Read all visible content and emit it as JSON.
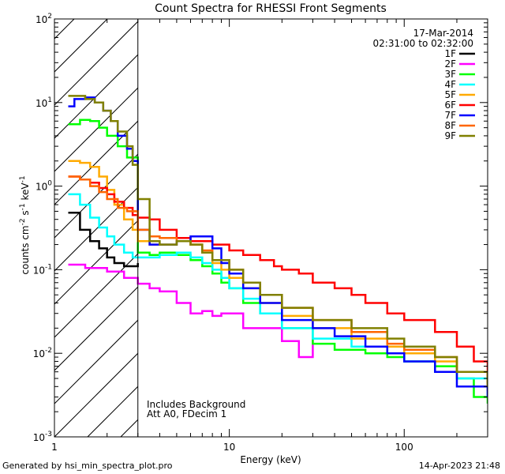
{
  "chart_data": {
    "type": "line",
    "title": "Count Spectra for RHESSI Front Segments",
    "xlabel": "Energy (keV)",
    "ylabel": "counts cm-2 s-1 keV-1",
    "xscale": "log",
    "yscale": "log",
    "xlim": [
      1,
      300
    ],
    "ylim": [
      0.001,
      100
    ],
    "x_ticks": [
      1,
      10,
      100
    ],
    "x_tick_labels": [
      "1",
      "10",
      "100"
    ],
    "y_ticks": [
      0.001,
      0.01,
      0.1,
      1,
      10,
      100
    ],
    "y_tick_labels": [
      "10^-3",
      "10^-2",
      "10^-1",
      "10^0",
      "10^1",
      "10^2"
    ],
    "date": "17-Mar-2014",
    "time_range": "02:31:00 to 02:32:00",
    "annotation_lines": [
      "Includes Background",
      "Att A0, FDecim 1"
    ],
    "hatched_region": [
      1,
      3
    ],
    "series": [
      {
        "name": "1F",
        "color": "#000000",
        "x": [
          1.2,
          1.4,
          1.6,
          1.8,
          2.0,
          2.2,
          2.5,
          2.8,
          3.0
        ],
        "y": [
          0.48,
          0.3,
          0.22,
          0.18,
          0.14,
          0.12,
          0.11,
          0.11,
          0.12
        ]
      },
      {
        "name": "2F",
        "color": "#ff00ff",
        "x": [
          1.2,
          1.5,
          2.0,
          2.5,
          3.0,
          3.5,
          4.0,
          5.0,
          6.0,
          7.0,
          8.0,
          9.0,
          10.0,
          12.0,
          15.0,
          20.0,
          25.0,
          30.0
        ],
        "y": [
          0.115,
          0.105,
          0.095,
          0.08,
          0.068,
          0.06,
          0.055,
          0.04,
          0.03,
          0.032,
          0.028,
          0.03,
          0.03,
          0.02,
          0.02,
          0.014,
          0.009,
          0.015
        ]
      },
      {
        "name": "3F",
        "color": "#00ff00",
        "x": [
          1.2,
          1.4,
          1.6,
          1.8,
          2.0,
          2.3,
          2.6,
          3.0,
          3.5,
          4.0,
          5.0,
          6.0,
          7.0,
          8.0,
          9.0,
          10.0,
          12.0,
          15.0,
          20.0,
          30.0,
          40.0,
          60.0,
          80.0,
          100.0,
          150.0,
          200.0,
          250.0,
          300.0
        ],
        "y": [
          5.5,
          6.2,
          6.0,
          5.0,
          4.0,
          3.0,
          2.2,
          0.16,
          0.15,
          0.16,
          0.15,
          0.13,
          0.11,
          0.09,
          0.07,
          0.06,
          0.04,
          0.03,
          0.02,
          0.013,
          0.011,
          0.01,
          0.009,
          0.008,
          0.007,
          0.005,
          0.003,
          0.0025
        ]
      },
      {
        "name": "4F",
        "color": "#00ffff",
        "x": [
          1.2,
          1.4,
          1.6,
          1.8,
          2.0,
          2.2,
          2.5,
          2.8,
          3.0,
          3.5,
          4.0,
          5.0,
          6.0,
          7.0,
          8.0,
          9.0,
          10.0,
          12.0,
          15.0,
          20.0,
          30.0,
          50.0,
          80.0,
          100.0,
          150.0,
          200.0,
          300.0
        ],
        "y": [
          0.8,
          0.6,
          0.42,
          0.32,
          0.25,
          0.2,
          0.16,
          0.14,
          0.14,
          0.14,
          0.15,
          0.16,
          0.14,
          0.12,
          0.1,
          0.08,
          0.06,
          0.045,
          0.03,
          0.02,
          0.015,
          0.012,
          0.01,
          0.008,
          0.006,
          0.005,
          0.003
        ]
      },
      {
        "name": "5F",
        "color": "#ffaa00",
        "x": [
          1.2,
          1.4,
          1.6,
          1.8,
          2.0,
          2.2,
          2.5,
          2.8,
          3.0,
          3.5,
          4.0,
          5.0,
          6.0,
          7.0,
          8.0,
          9.0,
          10.0,
          12.0,
          15.0,
          20.0,
          30.0,
          50.0,
          80.0,
          100.0,
          150.0,
          200.0,
          300.0
        ],
        "y": [
          2.0,
          1.9,
          1.7,
          1.3,
          0.9,
          0.6,
          0.4,
          0.3,
          0.22,
          0.2,
          0.2,
          0.22,
          0.2,
          0.16,
          0.12,
          0.1,
          0.08,
          0.06,
          0.04,
          0.028,
          0.02,
          0.015,
          0.012,
          0.01,
          0.008,
          0.006,
          0.0035
        ]
      },
      {
        "name": "6F",
        "color": "#ff0000",
        "x": [
          1.2,
          1.4,
          1.6,
          1.8,
          2.0,
          2.2,
          2.5,
          2.8,
          3.0,
          3.5,
          4.0,
          5.0,
          6.0,
          7.0,
          8.0,
          10.0,
          12.0,
          15.0,
          18.0,
          20.0,
          25.0,
          30.0,
          40.0,
          50.0,
          60.0,
          80.0,
          100.0,
          150.0,
          200.0,
          250.0,
          300.0
        ],
        "y": [
          1.3,
          1.2,
          1.1,
          0.95,
          0.8,
          0.65,
          0.55,
          0.45,
          0.42,
          0.4,
          0.3,
          0.24,
          0.22,
          0.22,
          0.2,
          0.17,
          0.15,
          0.13,
          0.11,
          0.1,
          0.09,
          0.07,
          0.06,
          0.05,
          0.04,
          0.03,
          0.025,
          0.018,
          0.012,
          0.008,
          0.0045
        ]
      },
      {
        "name": "7F",
        "color": "#0000ff",
        "x": [
          1.2,
          1.3,
          1.5,
          1.7,
          1.9,
          2.1,
          2.3,
          2.6,
          2.8,
          3.0,
          3.5,
          4.0,
          5.0,
          6.0,
          7.0,
          8.0,
          9.0,
          10.0,
          12.0,
          15.0,
          20.0,
          30.0,
          40.0,
          60.0,
          80.0,
          100.0,
          150.0,
          200.0,
          300.0
        ],
        "y": [
          9.0,
          11.0,
          11.5,
          10.0,
          8.0,
          6.0,
          4.0,
          2.8,
          2.0,
          0.3,
          0.2,
          0.2,
          0.22,
          0.25,
          0.25,
          0.18,
          0.12,
          0.09,
          0.06,
          0.04,
          0.025,
          0.02,
          0.016,
          0.012,
          0.01,
          0.008,
          0.006,
          0.004,
          0.003
        ]
      },
      {
        "name": "8F",
        "color": "#ff6600",
        "x": [
          1.2,
          1.4,
          1.6,
          1.8,
          2.0,
          2.3,
          2.6,
          3.0,
          3.5,
          4.0,
          5.0,
          6.0,
          7.0,
          8.0,
          10.0,
          12.0,
          15.0,
          20.0,
          30.0,
          50.0,
          80.0,
          100.0,
          150.0,
          200.0,
          300.0
        ],
        "y": [
          1.3,
          1.2,
          1.0,
          0.85,
          0.7,
          0.55,
          0.5,
          0.3,
          0.25,
          0.24,
          0.22,
          0.2,
          0.17,
          0.13,
          0.1,
          0.07,
          0.05,
          0.035,
          0.025,
          0.018,
          0.013,
          0.011,
          0.009,
          0.006,
          0.004
        ]
      },
      {
        "name": "9F",
        "color": "#808000",
        "x": [
          1.2,
          1.3,
          1.5,
          1.7,
          1.9,
          2.1,
          2.3,
          2.6,
          2.8,
          3.0,
          3.5,
          4.0,
          5.0,
          6.0,
          7.0,
          8.0,
          10.0,
          12.0,
          15.0,
          20.0,
          30.0,
          50.0,
          80.0,
          100.0,
          150.0,
          200.0,
          300.0
        ],
        "y": [
          12.0,
          12.0,
          11.0,
          10.0,
          8.0,
          6.0,
          4.5,
          3.0,
          1.8,
          0.7,
          0.22,
          0.2,
          0.22,
          0.2,
          0.16,
          0.13,
          0.1,
          0.07,
          0.05,
          0.035,
          0.025,
          0.02,
          0.015,
          0.012,
          0.009,
          0.006,
          0.004
        ]
      }
    ]
  },
  "footer": {
    "left": "Generated by hsi_min_spectra_plot.pro",
    "right": "14-Apr-2023 21:48"
  }
}
